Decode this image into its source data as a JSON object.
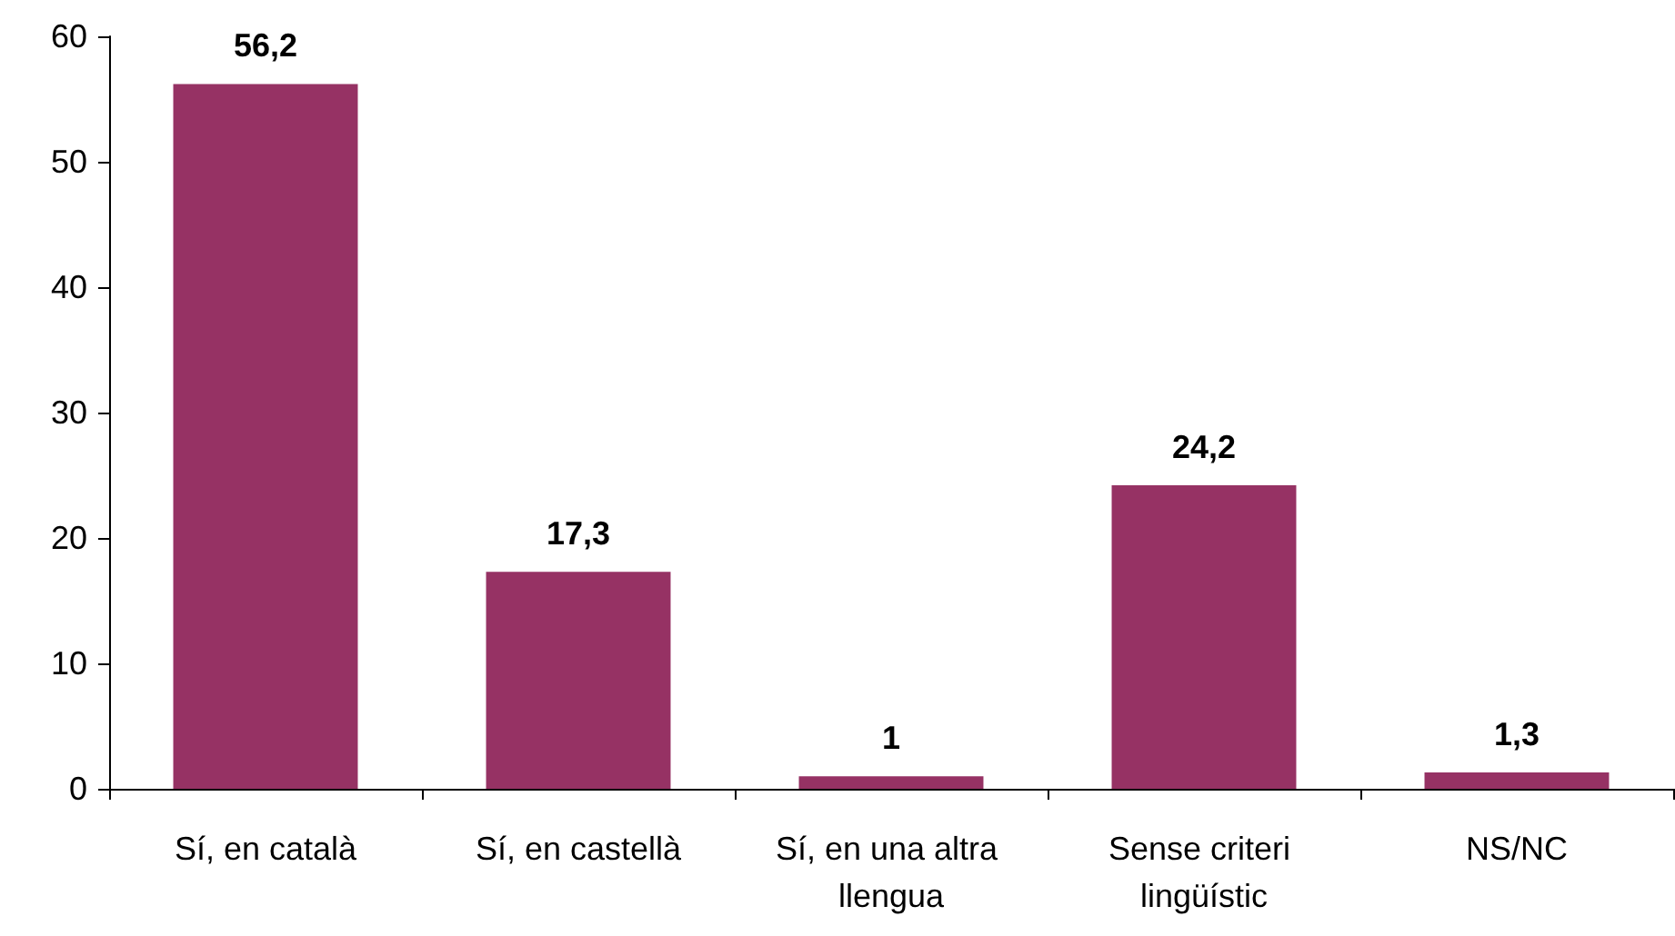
{
  "chart_data": {
    "type": "bar",
    "categories": [
      "Sí, en català",
      "Sí, en castellà",
      "Sí, en una altra llengua",
      "Sense criteri lingüístic",
      "NS/NC"
    ],
    "values": [
      56.2,
      17.3,
      1,
      24.2,
      1.3
    ],
    "value_labels": [
      "56,2",
      "17,3",
      "1",
      "24,2",
      "1,3"
    ],
    "color": "#963264",
    "ylim": [
      0,
      60
    ],
    "yticks": [
      0,
      10,
      20,
      30,
      40,
      50,
      60
    ],
    "grid": false
  }
}
